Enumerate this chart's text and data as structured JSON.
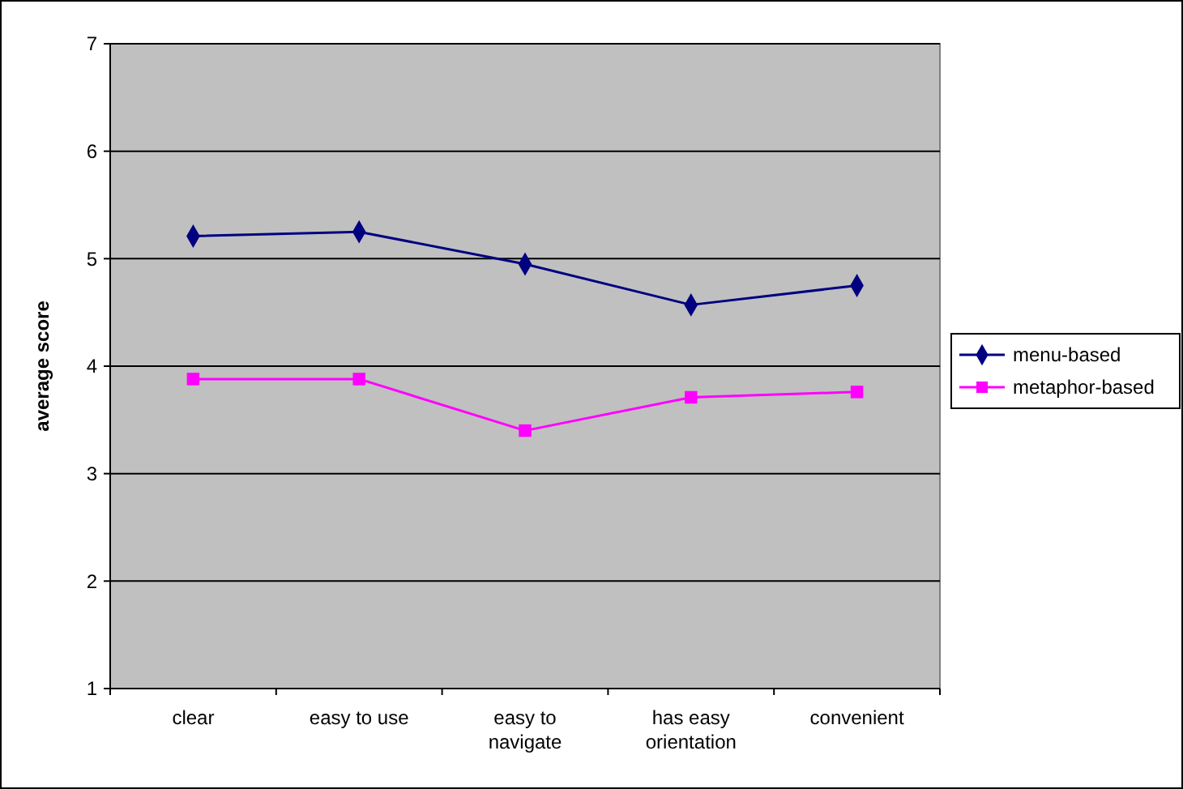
{
  "chart_data": {
    "type": "line",
    "ylabel": "average score",
    "categories": [
      "clear",
      "easy to use",
      "easy to navigate",
      "has easy orientation",
      "convenient"
    ],
    "series": [
      {
        "name": "menu-based",
        "color": "#000080",
        "marker": "diamond",
        "values": [
          5.21,
          5.25,
          4.95,
          4.57,
          4.75
        ]
      },
      {
        "name": "metaphor-based",
        "color": "#ff00ff",
        "marker": "square",
        "values": [
          3.88,
          3.88,
          3.4,
          3.71,
          3.76
        ]
      }
    ],
    "ylim": [
      1,
      7
    ],
    "yticks": [
      1,
      2,
      3,
      4,
      5,
      6,
      7
    ],
    "grid": "y",
    "legend": "right",
    "line_style": "solid"
  }
}
